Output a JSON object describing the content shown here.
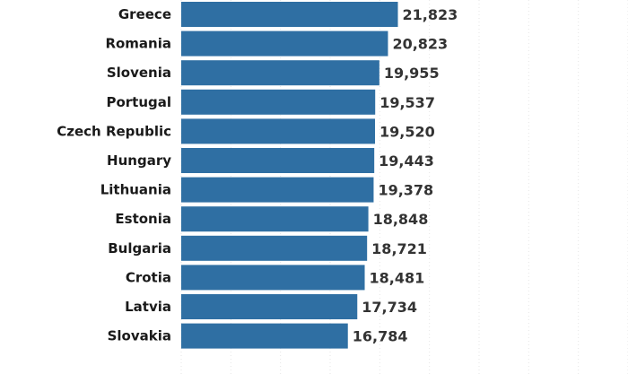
{
  "chart_data": {
    "type": "bar",
    "orientation": "horizontal",
    "categories": [
      "Greece",
      "Romania",
      "Slovenia",
      "Portugal",
      "Czech Republic",
      "Hungary",
      "Lithuania",
      "Estonia",
      "Bulgaria",
      "Crotia",
      "Latvia",
      "Slovakia"
    ],
    "values": [
      21823,
      20823,
      19955,
      19537,
      19520,
      19443,
      19378,
      18848,
      18721,
      18481,
      17734,
      16784
    ],
    "value_labels": [
      "21,823",
      "20,823",
      "19,955",
      "19,537",
      "19,520",
      "19,443",
      "19,378",
      "18,848",
      "18,721",
      "18,481",
      "17,734",
      "16,784"
    ],
    "xlim": [
      0,
      45000
    ],
    "grid": true,
    "bar_color": "#2f6fa3"
  }
}
